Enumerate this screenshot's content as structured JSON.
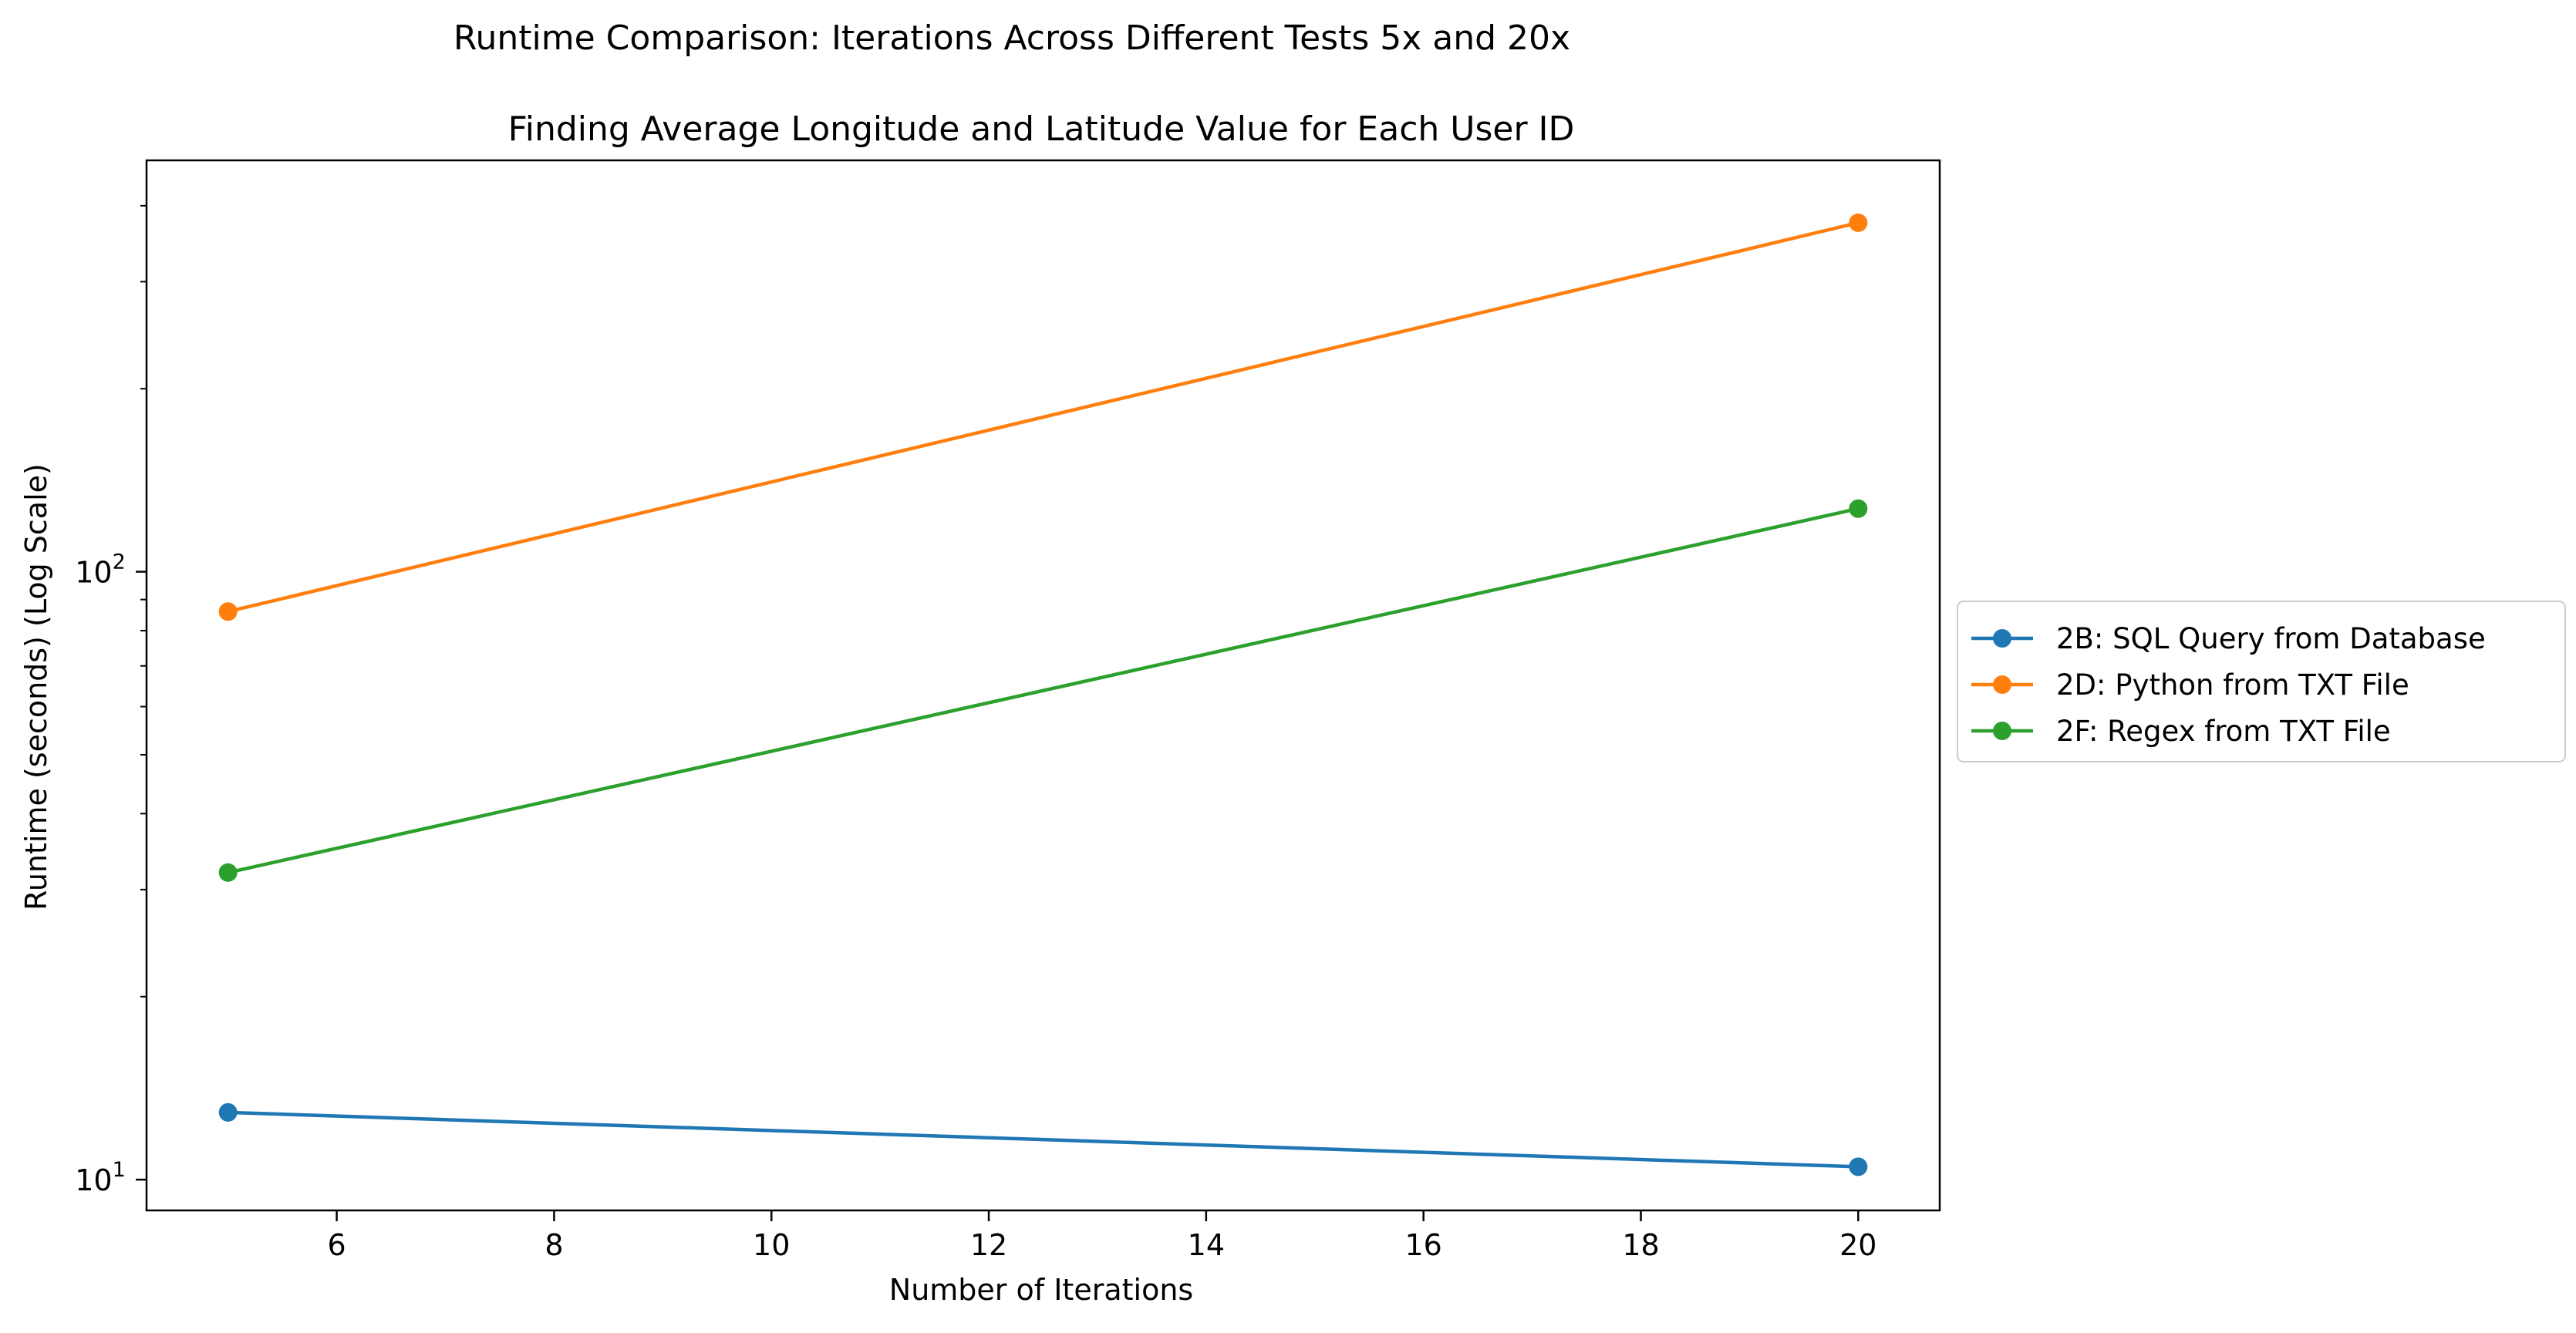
{
  "chart_data": {
    "type": "line",
    "suptitle": "Runtime Comparison: Iterations Across Different Tests 5x and 20x",
    "title": "Finding Average Longitude and Latitude Value for Each User ID",
    "xlabel": "Number of Iterations",
    "ylabel": "Runtime (seconds) (Log Scale)",
    "yscale": "log",
    "xlim": [
      4.25,
      20.75
    ],
    "ylim": [
      8.9,
      475
    ],
    "x_ticks": [
      6,
      8,
      10,
      12,
      14,
      16,
      18,
      20
    ],
    "y_major_ticks": [
      10,
      100
    ],
    "y_minor_ticks": [
      20,
      30,
      40,
      50,
      60,
      70,
      80,
      90,
      200,
      300,
      400
    ],
    "y_tick_labels": [
      {
        "value": 10,
        "base": "10",
        "exp": "1"
      },
      {
        "value": 100,
        "base": "10",
        "exp": "2"
      }
    ],
    "grid": false,
    "legend_position": "right-outside",
    "x": [
      5,
      20
    ],
    "series": [
      {
        "name": "2B: SQL Query from Database",
        "color": "#1f77b4",
        "values": [
          12.9,
          10.5
        ]
      },
      {
        "name": "2D: Python from TXT File",
        "color": "#ff7f0e",
        "values": [
          86,
          375
        ]
      },
      {
        "name": "2F: Regex from TXT File",
        "color": "#2ca02c",
        "values": [
          32,
          127
        ]
      }
    ]
  }
}
